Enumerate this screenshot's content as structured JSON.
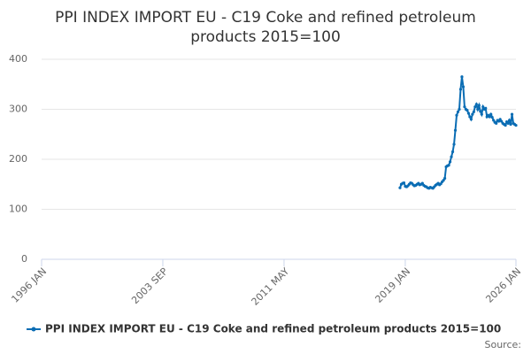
{
  "chart_data": {
    "type": "line",
    "title": [
      "PPI INDEX IMPORT EU - C19 Coke and refined petroleum",
      "products 2015=100"
    ],
    "source": "Source:",
    "x": [
      "2018-09",
      "2018-10",
      "2018-11",
      "2018-12",
      "2019-01",
      "2019-02",
      "2019-03",
      "2019-04",
      "2019-05",
      "2019-06",
      "2019-07",
      "2019-08",
      "2019-09",
      "2019-10",
      "2019-11",
      "2019-12",
      "2020-01",
      "2020-02",
      "2020-03",
      "2020-04",
      "2020-05",
      "2020-06",
      "2020-07",
      "2020-08",
      "2020-09",
      "2020-10",
      "2020-11",
      "2020-12",
      "2021-01",
      "2021-02",
      "2021-03",
      "2021-04",
      "2021-05",
      "2021-06",
      "2021-07",
      "2021-08",
      "2021-09",
      "2021-10",
      "2021-11",
      "2021-12",
      "2022-01",
      "2022-02",
      "2022-03",
      "2022-04",
      "2022-05",
      "2022-06",
      "2022-07",
      "2022-08",
      "2022-09",
      "2022-10",
      "2022-11",
      "2022-12",
      "2023-01",
      "2023-02",
      "2023-03",
      "2023-04",
      "2023-05",
      "2023-06",
      "2023-07",
      "2023-08",
      "2023-09",
      "2023-10",
      "2023-11",
      "2023-12",
      "2024-01",
      "2024-02",
      "2024-03",
      "2024-04",
      "2024-05",
      "2024-06",
      "2024-07",
      "2024-08",
      "2024-09",
      "2024-10",
      "2024-11",
      "2024-12",
      "2025-01",
      "2025-02",
      "2025-03",
      "2025-04",
      "2025-05",
      "2025-06",
      "2025-07",
      "2025-08",
      "2025-09",
      "2025-10",
      "2025-11",
      "2025-12",
      "2026-01"
    ],
    "series": [
      {
        "name": "PPI INDEX IMPORT EU - C19 Coke and refined petroleum products 2015=100",
        "color": "#0b6db4",
        "values": [
          143,
          150,
          152,
          153,
          146,
          145,
          147,
          150,
          153,
          152,
          149,
          147,
          148,
          150,
          152,
          149,
          150,
          152,
          148,
          146,
          145,
          143,
          142,
          144,
          143,
          142,
          145,
          148,
          150,
          152,
          149,
          151,
          155,
          158,
          162,
          185,
          187,
          188,
          195,
          205,
          215,
          230,
          258,
          288,
          295,
          300,
          340,
          365,
          345,
          305,
          300,
          298,
          292,
          285,
          280,
          290,
          295,
          305,
          310,
          300,
          308,
          296,
          290,
          305,
          300,
          302,
          285,
          288,
          285,
          290,
          284,
          278,
          274,
          272,
          278,
          276,
          280,
          276,
          272,
          270,
          268,
          275,
          272,
          278,
          270,
          290,
          272,
          270,
          268
        ]
      }
    ],
    "xlim": [
      "1996-01",
      "2026-01"
    ],
    "xticks": [
      {
        "value": "1996-01",
        "label": "1996 JAN"
      },
      {
        "value": "2003-09",
        "label": "2003 SEP"
      },
      {
        "value": "2011-05",
        "label": "2011 MAY"
      },
      {
        "value": "2019-01",
        "label": "2019 JAN"
      },
      {
        "value": "2026-01",
        "label": "2026 JAN"
      }
    ],
    "ylim": [
      0,
      400
    ],
    "yticks": [
      0,
      100,
      200,
      300,
      400
    ],
    "grid": true,
    "legend": "bottom"
  }
}
